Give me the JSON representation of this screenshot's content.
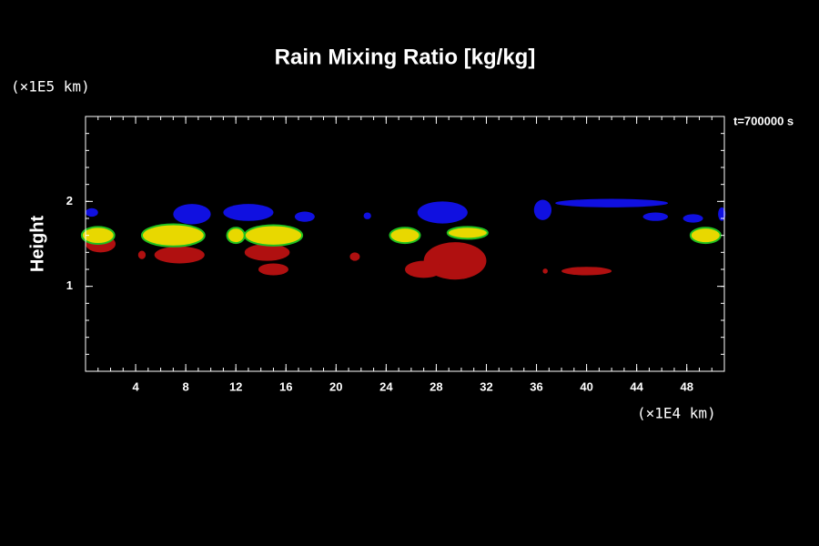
{
  "chart_data": {
    "type": "field",
    "title": "Rain Mixing Ratio [kg/kg]",
    "y_label": "Height",
    "y_unit": "(×1E5 km)",
    "x_unit": "(×1E4 km)",
    "annotation": "t=700000 s",
    "xlim": [
      0,
      51
    ],
    "xticks": [
      4,
      8,
      12,
      16,
      20,
      24,
      28,
      32,
      36,
      40,
      44,
      48
    ],
    "ylim": [
      0,
      3
    ],
    "yticks": [
      1,
      2
    ],
    "regions": [
      {
        "color": "#1010e0",
        "x": 8.5,
        "y": 1.85,
        "rx": 1.5,
        "ry": 0.12
      },
      {
        "color": "#1010e0",
        "x": 13,
        "y": 1.87,
        "rx": 2,
        "ry": 0.1
      },
      {
        "color": "#1010e0",
        "x": 17.5,
        "y": 1.82,
        "rx": 0.8,
        "ry": 0.06
      },
      {
        "color": "#1010e0",
        "x": 22.5,
        "y": 1.83,
        "rx": 0.3,
        "ry": 0.04
      },
      {
        "color": "#1010e0",
        "x": 28.5,
        "y": 1.87,
        "rx": 2,
        "ry": 0.13
      },
      {
        "color": "#1010e0",
        "x": 36.5,
        "y": 1.9,
        "rx": 0.7,
        "ry": 0.12
      },
      {
        "color": "#1010e0",
        "x": 42,
        "y": 1.98,
        "rx": 4.5,
        "ry": 0.05
      },
      {
        "color": "#1010e0",
        "x": 45.5,
        "y": 1.82,
        "rx": 1,
        "ry": 0.05
      },
      {
        "color": "#1010e0",
        "x": 48.5,
        "y": 1.8,
        "rx": 0.8,
        "ry": 0.05
      },
      {
        "color": "#1010e0",
        "x": 50.8,
        "y": 1.85,
        "rx": 0.3,
        "ry": 0.08
      },
      {
        "color": "#1010e0",
        "x": 0.5,
        "y": 1.87,
        "rx": 0.5,
        "ry": 0.05
      },
      {
        "color": "#b01010",
        "x": 1.2,
        "y": 1.5,
        "rx": 1.2,
        "ry": 0.1
      },
      {
        "color": "#b01010",
        "x": 7.5,
        "y": 1.37,
        "rx": 2,
        "ry": 0.1
      },
      {
        "color": "#b01010",
        "x": 14.5,
        "y": 1.4,
        "rx": 1.8,
        "ry": 0.1
      },
      {
        "color": "#b01010",
        "x": 15,
        "y": 1.2,
        "rx": 1.2,
        "ry": 0.07
      },
      {
        "color": "#b01010",
        "x": 21.5,
        "y": 1.35,
        "rx": 0.4,
        "ry": 0.05
      },
      {
        "color": "#b01010",
        "x": 29.5,
        "y": 1.3,
        "rx": 2.5,
        "ry": 0.22
      },
      {
        "color": "#b01010",
        "x": 27,
        "y": 1.2,
        "rx": 1.5,
        "ry": 0.1
      },
      {
        "color": "#b01010",
        "x": 40,
        "y": 1.18,
        "rx": 2,
        "ry": 0.05
      },
      {
        "color": "#b01010",
        "x": 36.7,
        "y": 1.18,
        "rx": 0.2,
        "ry": 0.03
      },
      {
        "color": "#b01010",
        "x": 4.5,
        "y": 1.37,
        "rx": 0.3,
        "ry": 0.05
      },
      {
        "color": "#e8d800",
        "x": 7,
        "y": 1.6,
        "rx": 2.5,
        "ry": 0.13
      },
      {
        "color": "#e8d800",
        "x": 12,
        "y": 1.6,
        "rx": 0.7,
        "ry": 0.09
      },
      {
        "color": "#e8d800",
        "x": 15,
        "y": 1.6,
        "rx": 2.3,
        "ry": 0.12
      },
      {
        "color": "#e8d800",
        "x": 25.5,
        "y": 1.6,
        "rx": 1.2,
        "ry": 0.09
      },
      {
        "color": "#e8d800",
        "x": 30.5,
        "y": 1.63,
        "rx": 1.6,
        "ry": 0.07
      },
      {
        "color": "#e8d800",
        "x": 49.5,
        "y": 1.6,
        "rx": 1.2,
        "ry": 0.09
      },
      {
        "color": "#e8d800",
        "x": 1,
        "y": 1.6,
        "rx": 1.3,
        "ry": 0.1
      }
    ]
  }
}
